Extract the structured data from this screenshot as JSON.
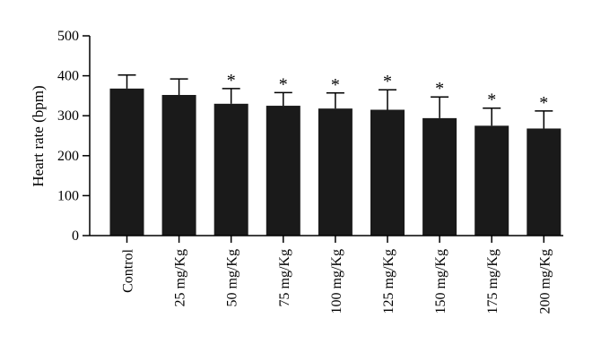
{
  "chart_data": {
    "type": "bar",
    "title": "",
    "xlabel": "",
    "ylabel": "Heart rate (bpm)",
    "ylim": [
      0,
      500
    ],
    "yticks": [
      0,
      100,
      200,
      300,
      400,
      500
    ],
    "categories": [
      "Control",
      "25 mg/Kg",
      "50 mg/Kg",
      "75 mg/Kg",
      "100 mg/Kg",
      "125 mg/Kg",
      "150 mg/Kg",
      "175 mg/Kg",
      "200 mg/Kg"
    ],
    "values": [
      368,
      352,
      330,
      325,
      318,
      315,
      294,
      275,
      268
    ],
    "error_upper": [
      34,
      40,
      38,
      33,
      39,
      50,
      53,
      44,
      44
    ],
    "significance": [
      "",
      "",
      "*",
      "*",
      "*",
      "*",
      "*",
      "*",
      "*"
    ],
    "bar_color": "#1a1a1a",
    "grid": false,
    "legend": "none"
  }
}
